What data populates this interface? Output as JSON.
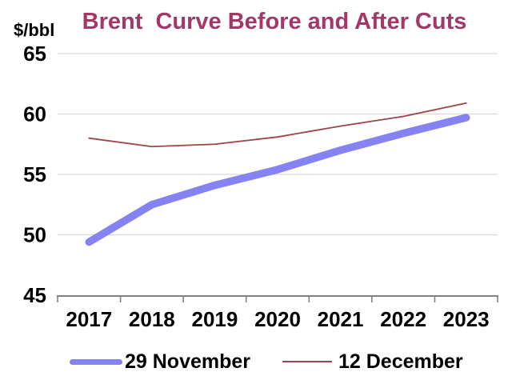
{
  "chart_data": {
    "type": "line",
    "title": "Brent  Curve Before and After Cuts",
    "y_axis_unit": "$/bbl",
    "categories": [
      "2017",
      "2018",
      "2019",
      "2020",
      "2021",
      "2022",
      "2023"
    ],
    "series": [
      {
        "name": "29 November",
        "values": [
          49.4,
          52.5,
          54.1,
          55.4,
          57.0,
          58.4,
          59.7
        ],
        "color": "#8583F2",
        "stroke_width": 9.5
      },
      {
        "name": "12 December",
        "values": [
          58.0,
          57.3,
          57.5,
          58.1,
          59.0,
          59.8,
          60.9
        ],
        "color": "#9E4347",
        "stroke_width": 1.8
      }
    ],
    "ylim": [
      45,
      65
    ],
    "yticks": [
      45,
      50,
      55,
      60,
      65
    ],
    "grid": true,
    "legend_position": "bottom",
    "colors": {
      "title": "#A23768",
      "grid": "#D9D9D9",
      "axis": "#808080",
      "tick_label": "#000000"
    }
  }
}
